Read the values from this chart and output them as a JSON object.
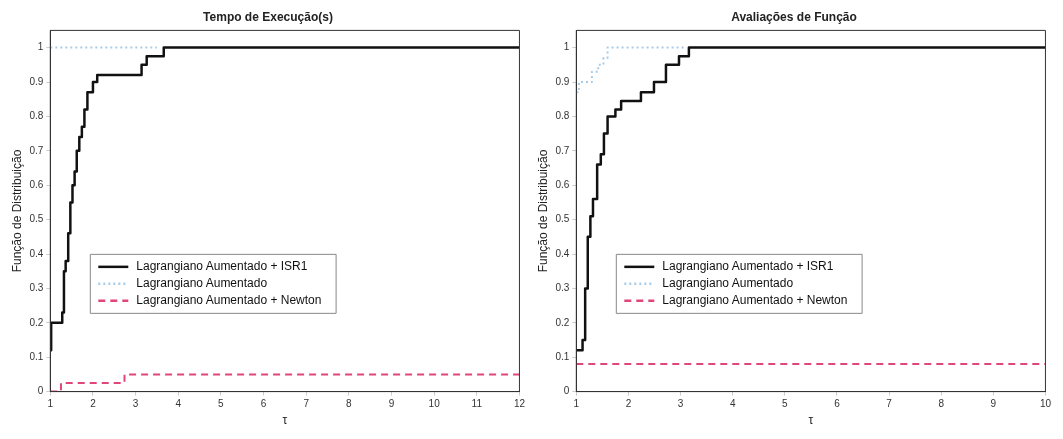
{
  "chart_data": [
    {
      "type": "step",
      "title": "Tempo de Execução(s)",
      "xlabel": "τ",
      "ylabel": "Função de Distribuição",
      "xlim": [
        1,
        12
      ],
      "ylim": [
        0,
        1.05
      ],
      "xticks": [
        1,
        2,
        3,
        4,
        5,
        6,
        7,
        8,
        9,
        10,
        11,
        12
      ],
      "yticks": [
        0,
        0.1,
        0.2,
        0.3,
        0.4,
        0.5,
        0.6,
        0.7,
        0.8,
        0.9,
        1
      ],
      "grid": false,
      "legend": "left",
      "marker": "none",
      "series": [
        {
          "name": "Lagrangiano Aumentado + ISR1",
          "color": "#111111",
          "line_style": "solid",
          "x": [
            1,
            1.02,
            1.28,
            1.32,
            1.36,
            1.42,
            1.47,
            1.52,
            1.57,
            1.62,
            1.68,
            1.74,
            1.8,
            1.87,
            2.0,
            2.1,
            3.14,
            3.26,
            3.66,
            12
          ],
          "values": [
            0.12,
            0.2,
            0.23,
            0.35,
            0.38,
            0.46,
            0.55,
            0.6,
            0.64,
            0.7,
            0.74,
            0.77,
            0.82,
            0.87,
            0.9,
            0.92,
            0.95,
            0.975,
            1.0,
            1.0
          ]
        },
        {
          "name": "Lagrangiano Aumentado",
          "color": "#a8cce8",
          "line_style": "dotted",
          "x": [
            1,
            3.5
          ],
          "values": [
            1.0,
            1.0
          ]
        },
        {
          "name": "Lagrangiano Aumentado + Newton",
          "color": "#e0457b",
          "line_style": "dashed",
          "x": [
            1,
            1.25,
            2.74,
            12
          ],
          "values": [
            0,
            0.025,
            0.05,
            0.05
          ]
        }
      ]
    },
    {
      "type": "step",
      "title": "Avaliações de Função",
      "xlabel": "τ",
      "ylabel": "Função de Distribuição",
      "xlim": [
        1,
        10
      ],
      "ylim": [
        0,
        1.05
      ],
      "xticks": [
        1,
        2,
        3,
        4,
        5,
        6,
        7,
        8,
        9,
        10
      ],
      "yticks": [
        0,
        0.1,
        0.2,
        0.3,
        0.4,
        0.5,
        0.6,
        0.7,
        0.8,
        0.9,
        1
      ],
      "grid": false,
      "legend": "left",
      "marker": "none",
      "series": [
        {
          "name": "Lagrangiano Aumentado + ISR1",
          "color": "#111111",
          "line_style": "solid",
          "x": [
            1,
            1.12,
            1.17,
            1.22,
            1.27,
            1.32,
            1.4,
            1.47,
            1.53,
            1.6,
            1.75,
            1.86,
            2.24,
            2.49,
            2.72,
            2.97,
            3.16,
            10
          ],
          "values": [
            0.12,
            0.15,
            0.3,
            0.45,
            0.51,
            0.56,
            0.66,
            0.69,
            0.75,
            0.8,
            0.82,
            0.845,
            0.87,
            0.9,
            0.95,
            0.975,
            1.0,
            1.0
          ]
        },
        {
          "name": "Lagrangiano Aumentado",
          "color": "#a8cce8",
          "line_style": "dotted",
          "x": [
            1,
            1.05,
            1.3,
            1.42,
            1.52,
            1.6,
            3.1
          ],
          "values": [
            0.87,
            0.9,
            0.93,
            0.95,
            0.97,
            1.0,
            1.0
          ]
        },
        {
          "name": "Lagrangiano Aumentado + Newton",
          "color": "#e0457b",
          "line_style": "dashed",
          "x": [
            1,
            10
          ],
          "values": [
            0.08,
            0.08
          ]
        }
      ]
    }
  ]
}
